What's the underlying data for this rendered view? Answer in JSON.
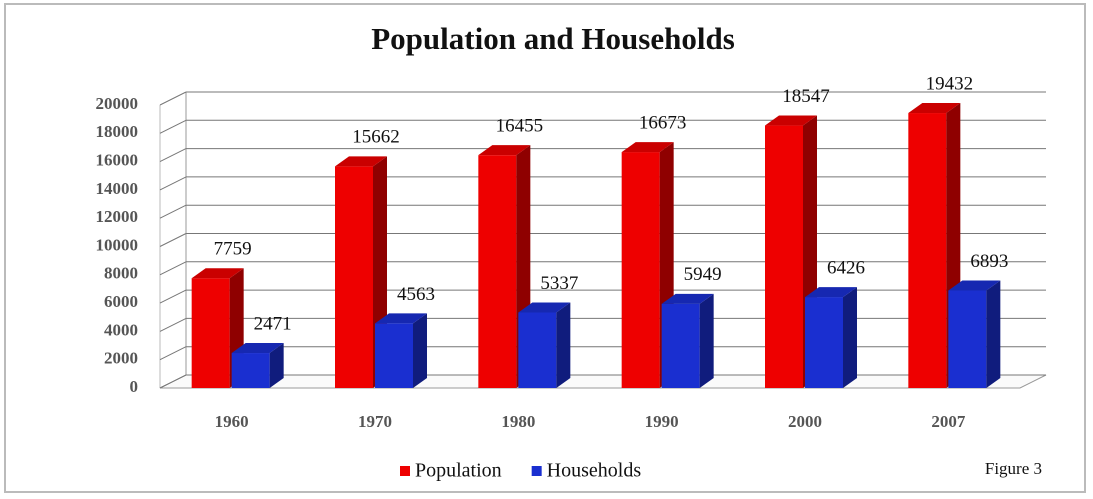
{
  "chart_data": {
    "type": "bar3d",
    "title": "Population and Households",
    "categories": [
      "1960",
      "1970",
      "1980",
      "1990",
      "2000",
      "2007"
    ],
    "series": [
      {
        "name": "Population",
        "color": "#ee0000",
        "values": [
          7759,
          15662,
          16455,
          16673,
          18547,
          19432
        ]
      },
      {
        "name": "Households",
        "color": "#1a2fd0",
        "values": [
          2471,
          4563,
          5337,
          5949,
          6426,
          6893
        ]
      }
    ],
    "ylim": [
      0,
      20000
    ],
    "yticks": [
      0,
      2000,
      4000,
      6000,
      8000,
      10000,
      12000,
      14000,
      16000,
      18000,
      20000
    ],
    "grid": true,
    "legend": "bottom",
    "annotation": "Figure 3"
  }
}
